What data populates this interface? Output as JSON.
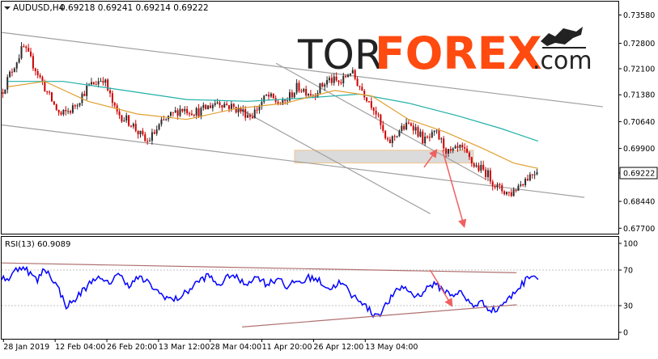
{
  "header": {
    "symbol_icon": "chevron-down-icon",
    "symbol": "AUDUSD,H4",
    "ohlc": "0.69218 0.69241 0.69214 0.69222"
  },
  "watermark": {
    "text_tor": "TOR",
    "text_forex": "FOREX",
    "text_com": ".com",
    "icon": "bull-bear-icon"
  },
  "colors": {
    "candle_up": "#2a2a2a",
    "candle_down": "#cc0000",
    "ma_fast": "#e0a030",
    "ma_slow": "#20b0a8",
    "channel": "#a0a0a0",
    "arrow": "#f06060",
    "zone_fill": "#d8d8d8",
    "zone_border": "#f0c080",
    "rsi_line": "#0000ff",
    "rsi_trend": "#b07070",
    "tor_text": "#222222",
    "forex_text": "#ff4a10"
  },
  "chart_data": [
    {
      "type": "candlestick",
      "title": "AUDUSD,H4",
      "y_ticks": [
        "0.73580",
        "0.72800",
        "0.72100",
        "0.71380",
        "0.70640",
        "0.69900",
        "0.69222",
        "0.68440",
        "0.67700"
      ],
      "x_ticks": [
        "28 Jan 2019",
        "12 Feb 04:00",
        "26 Feb 20:00",
        "13 Mar 12:00",
        "28 Mar 04:00",
        "11 Apr 20:00",
        "26 Apr 12:00",
        "13 May 04:00"
      ],
      "ylim": [
        0.6755,
        0.7395
      ],
      "current_price": "0.69222",
      "close_path": [
        {
          "x": 0,
          "y": 0.7145
        },
        {
          "x": 0.015,
          "y": 0.72
        },
        {
          "x": 0.035,
          "y": 0.727
        },
        {
          "x": 0.055,
          "y": 0.721
        },
        {
          "x": 0.075,
          "y": 0.714
        },
        {
          "x": 0.095,
          "y": 0.708
        },
        {
          "x": 0.115,
          "y": 0.71
        },
        {
          "x": 0.14,
          "y": 0.716
        },
        {
          "x": 0.165,
          "y": 0.7185
        },
        {
          "x": 0.185,
          "y": 0.709
        },
        {
          "x": 0.21,
          "y": 0.706
        },
        {
          "x": 0.235,
          "y": 0.7005
        },
        {
          "x": 0.26,
          "y": 0.706
        },
        {
          "x": 0.29,
          "y": 0.71
        },
        {
          "x": 0.32,
          "y": 0.709
        },
        {
          "x": 0.35,
          "y": 0.712
        },
        {
          "x": 0.38,
          "y": 0.71
        },
        {
          "x": 0.405,
          "y": 0.708
        },
        {
          "x": 0.43,
          "y": 0.7135
        },
        {
          "x": 0.455,
          "y": 0.711
        },
        {
          "x": 0.48,
          "y": 0.716
        },
        {
          "x": 0.505,
          "y": 0.714
        },
        {
          "x": 0.53,
          "y": 0.718
        },
        {
          "x": 0.55,
          "y": 0.717
        },
        {
          "x": 0.565,
          "y": 0.7205
        },
        {
          "x": 0.585,
          "y": 0.715
        },
        {
          "x": 0.605,
          "y": 0.71
        },
        {
          "x": 0.625,
          "y": 0.7
        },
        {
          "x": 0.645,
          "y": 0.704
        },
        {
          "x": 0.665,
          "y": 0.706
        },
        {
          "x": 0.685,
          "y": 0.701
        },
        {
          "x": 0.705,
          "y": 0.703
        },
        {
          "x": 0.725,
          "y": 0.6975
        },
        {
          "x": 0.745,
          "y": 0.699
        },
        {
          "x": 0.765,
          "y": 0.6945
        },
        {
          "x": 0.785,
          "y": 0.6925
        },
        {
          "x": 0.805,
          "y": 0.688
        },
        {
          "x": 0.825,
          "y": 0.6865
        },
        {
          "x": 0.845,
          "y": 0.69
        },
        {
          "x": 0.87,
          "y": 0.6935
        }
      ],
      "ma_fast": [
        {
          "x": 0.01,
          "y": 0.716
        },
        {
          "x": 0.07,
          "y": 0.7175
        },
        {
          "x": 0.14,
          "y": 0.712
        },
        {
          "x": 0.22,
          "y": 0.7085
        },
        {
          "x": 0.3,
          "y": 0.707
        },
        {
          "x": 0.38,
          "y": 0.71
        },
        {
          "x": 0.46,
          "y": 0.7115
        },
        {
          "x": 0.54,
          "y": 0.715
        },
        {
          "x": 0.6,
          "y": 0.7135
        },
        {
          "x": 0.66,
          "y": 0.707
        },
        {
          "x": 0.72,
          "y": 0.7035
        },
        {
          "x": 0.78,
          "y": 0.699
        },
        {
          "x": 0.83,
          "y": 0.695
        },
        {
          "x": 0.87,
          "y": 0.6935
        }
      ],
      "ma_slow": [
        {
          "x": 0.01,
          "y": 0.7175
        },
        {
          "x": 0.1,
          "y": 0.7175
        },
        {
          "x": 0.2,
          "y": 0.715
        },
        {
          "x": 0.3,
          "y": 0.7125
        },
        {
          "x": 0.4,
          "y": 0.712
        },
        {
          "x": 0.5,
          "y": 0.713
        },
        {
          "x": 0.58,
          "y": 0.714
        },
        {
          "x": 0.66,
          "y": 0.7115
        },
        {
          "x": 0.74,
          "y": 0.708
        },
        {
          "x": 0.81,
          "y": 0.7045
        },
        {
          "x": 0.87,
          "y": 0.701
        }
      ],
      "channel_lines": [
        {
          "name": "upper-channel",
          "x": [
            0.0,
            0.975
          ],
          "y": [
            0.731,
            0.7105
          ]
        },
        {
          "name": "lower-channel",
          "x": [
            0.0,
            0.945
          ],
          "y": [
            0.7055,
            0.6855
          ]
        },
        {
          "name": "steep-upper",
          "x": [
            0.445,
            0.785
          ],
          "y": [
            0.7225,
            0.6905
          ]
        },
        {
          "name": "steep-lower",
          "x": [
            0.385,
            0.695
          ],
          "y": [
            0.71,
            0.681
          ]
        }
      ],
      "zone": {
        "x": [
          0.475,
          0.765
        ],
        "y": [
          0.6985,
          0.695
        ]
      },
      "arrows": [
        {
          "name": "arrow-up",
          "x": [
            0.685,
            0.705
          ],
          "y": [
            0.6938,
            0.6985
          ]
        },
        {
          "name": "arrow-down",
          "x": [
            0.715,
            0.75
          ],
          "y": [
            0.6985,
            0.6775
          ]
        }
      ]
    },
    {
      "type": "line",
      "title": "RSI(13) 60.9089",
      "y_ticks": [
        "100",
        "70",
        "30",
        "0"
      ],
      "ylim": [
        0,
        100
      ],
      "values": [
        62,
        60,
        70,
        75,
        66,
        58,
        72,
        62,
        48,
        30,
        34,
        44,
        52,
        62,
        58,
        54,
        66,
        60,
        52,
        62,
        58,
        52,
        44,
        40,
        36,
        40,
        46,
        54,
        60,
        64,
        54,
        56,
        66,
        60,
        54,
        60,
        62,
        54,
        58,
        62,
        48,
        58,
        56,
        62,
        60,
        54,
        48,
        56,
        52,
        40,
        38,
        28,
        20,
        22,
        34,
        44,
        52,
        46,
        40,
        46,
        54,
        52,
        46,
        42,
        46,
        36,
        30,
        34,
        28,
        24,
        32,
        38,
        48,
        56,
        66,
        61
      ],
      "trend_lines": [
        {
          "name": "rsi-upper-trend",
          "x": [
            0.0,
            0.835
          ],
          "y": [
            78,
            67
          ]
        },
        {
          "name": "rsi-lower-trend",
          "x": [
            0.39,
            0.835
          ],
          "y": [
            6,
            31
          ]
        }
      ],
      "arrow": {
        "name": "rsi-arrow",
        "x": [
          0.695,
          0.73
        ],
        "y": [
          70,
          30
        ]
      }
    }
  ]
}
